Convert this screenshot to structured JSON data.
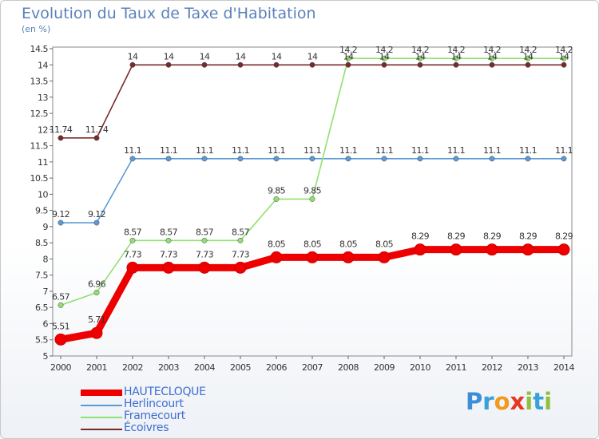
{
  "chart_data": {
    "type": "line",
    "title": "Evolution du Taux de Taxe d'Habitation",
    "subtitle": "(en %)",
    "xlabel": "",
    "ylabel": "",
    "ylim": [
      5,
      14.5
    ],
    "yticks": [
      "5",
      "5.5",
      "6",
      "6.5",
      "7",
      "7.5",
      "8",
      "8.5",
      "9",
      "9.5",
      "10",
      "10.5",
      "11",
      "11.5",
      "12",
      "12.5",
      "13",
      "13.5",
      "14",
      "14.5"
    ],
    "categories": [
      "2000",
      "2001",
      "2002",
      "2003",
      "2004",
      "2005",
      "2006",
      "2007",
      "2008",
      "2009",
      "2010",
      "2011",
      "2012",
      "2013",
      "2014"
    ],
    "grid": false,
    "legend_position": "bottom-left",
    "series": [
      {
        "name": "HAUTECLOQUE",
        "color": "#ee0000",
        "values": [
          5.51,
          5.71,
          7.73,
          7.73,
          7.73,
          7.73,
          8.05,
          8.05,
          8.05,
          8.05,
          8.29,
          8.29,
          8.29,
          8.29,
          8.29
        ],
        "labels": [
          "5.51",
          "5.71",
          "7.73",
          "7.73",
          "7.73",
          "7.73",
          "8.05",
          "8.05",
          "8.05",
          "8.05",
          "8.29",
          "8.29",
          "8.29",
          "8.29",
          "8.29"
        ]
      },
      {
        "name": "Herlincourt",
        "color": "#5b9bd5",
        "values": [
          9.12,
          9.12,
          11.1,
          11.1,
          11.1,
          11.1,
          11.1,
          11.1,
          11.1,
          11.1,
          11.1,
          11.1,
          11.1,
          11.1,
          11.1
        ],
        "labels": [
          "9.12",
          "9.12",
          "11.1",
          "11.1",
          "11.1",
          "11.1",
          "11.1",
          "11.1",
          "11.1",
          "11.1",
          "11.1",
          "11.1",
          "11.1",
          "11.1",
          "11.1"
        ]
      },
      {
        "name": "Framecourt",
        "color": "#90e070",
        "values": [
          6.57,
          6.96,
          8.57,
          8.57,
          8.57,
          8.57,
          9.85,
          9.85,
          14.2,
          14.2,
          14.2,
          14.2,
          14.2,
          14.2,
          14.2
        ],
        "labels": [
          "6.57",
          "6.96",
          "8.57",
          "8.57",
          "8.57",
          "8.57",
          "9.85",
          "9.85",
          "14.2",
          "14.2",
          "14.2",
          "14.2",
          "14.2",
          "14.2",
          "14.2"
        ]
      },
      {
        "name": "Écoivres",
        "color": "#7a2a2a",
        "values": [
          11.74,
          11.74,
          14,
          14,
          14,
          14,
          14,
          14,
          14,
          14,
          14,
          14,
          14,
          14,
          14
        ],
        "labels": [
          "11.74",
          "11.74",
          "14",
          "14",
          "14",
          "14",
          "14",
          "14",
          "14",
          "14",
          "14",
          "14",
          "14",
          "14",
          "14"
        ]
      }
    ]
  },
  "logo": {
    "letters": [
      "P",
      "r",
      "o",
      "x",
      "i",
      "t",
      "i"
    ],
    "colors": [
      "#3a8fd8",
      "#3aa0d8",
      "#f29a1e",
      "#e8361f",
      "#8fc13e",
      "#3aa0d8",
      "#8fc13e"
    ]
  }
}
